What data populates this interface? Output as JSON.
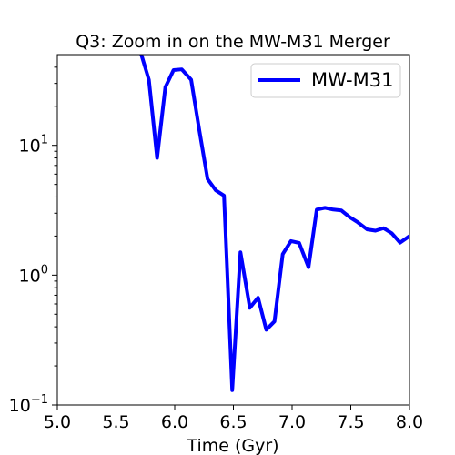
{
  "chart_data": {
    "type": "line",
    "title": "Q3: Zoom in on the MW-M31 Merger",
    "xlabel": "Time (Gyr)",
    "ylabel": "",
    "xlim": [
      5.0,
      8.0
    ],
    "ylim": [
      0.1,
      50
    ],
    "yscale": "log",
    "grid": false,
    "legend_position": "top-right",
    "x_ticks": [
      "5.0",
      "5.5",
      "6.0",
      "6.5",
      "7.0",
      "7.5",
      "8.0"
    ],
    "y_ticks": [
      {
        "base": "10",
        "exp": "−1"
      },
      {
        "base": "10",
        "exp": "0"
      },
      {
        "base": "10",
        "exp": "1"
      }
    ],
    "series": [
      {
        "name": "MW-M31",
        "color": "#0000ff",
        "x": [
          5.71,
          5.78,
          5.85,
          5.92,
          5.99,
          6.06,
          6.14,
          6.21,
          6.28,
          6.35,
          6.42,
          6.49,
          6.56,
          6.64,
          6.71,
          6.78,
          6.85,
          6.92,
          6.99,
          7.06,
          7.14,
          7.21,
          7.28,
          7.35,
          7.42,
          7.49,
          7.56,
          7.64,
          7.71,
          7.78,
          7.85,
          7.92,
          8.0
        ],
        "y": [
          52,
          32,
          8,
          28,
          38,
          38.5,
          32,
          13,
          5.5,
          4.5,
          4.1,
          0.13,
          1.5,
          0.56,
          0.67,
          0.38,
          0.44,
          1.45,
          1.83,
          1.77,
          1.15,
          3.2,
          3.3,
          3.2,
          3.15,
          2.8,
          2.55,
          2.25,
          2.2,
          2.3,
          2.1,
          1.78,
          2.0
        ]
      }
    ]
  }
}
